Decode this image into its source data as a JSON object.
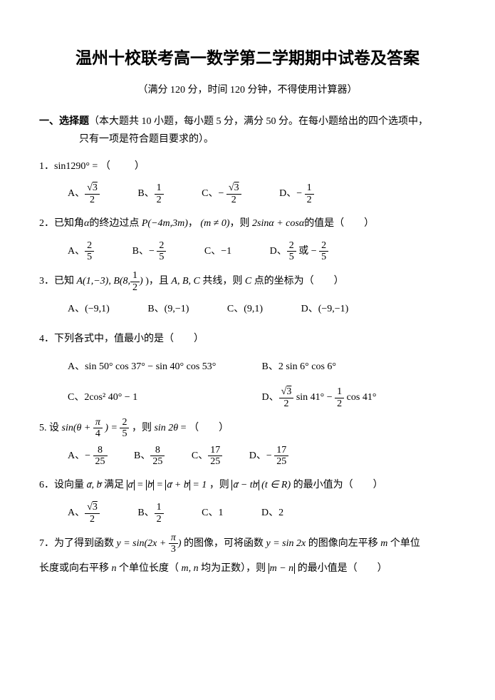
{
  "doc": {
    "title": "温州十校联考高一数学第二学期期中试卷及答案",
    "subtitle": "（满分 120 分，时间 120 分钟，不得使用计算器）",
    "section1_label": "一、选择题",
    "section1_desc": "（本大题共 10 小题，每小题 5 分，满分 50 分。在每小题给出的四个选项中，",
    "section1_desc2": "只有一项是符合题目要求的）。",
    "q1": {
      "stem_a": "1．sin1290° =",
      "stem_b": "（　　）"
    },
    "q2": {
      "stem_a": "2．已知角",
      "alpha": "α",
      "stem_b": "的终边过点",
      "P": "P(−4m,3m)",
      "stem_c": "，",
      "cond": "(m ≠ 0)",
      "stem_d": "，则",
      "expr": "2sinα + cosα",
      "stem_e": "的值是（　　）",
      "oA_pre": "A、",
      "oB_pre": "B、",
      "oC_pre": "C、",
      "oC_val": "−1",
      "oD_pre": "D、",
      "oD_mid": "或"
    },
    "q3": {
      "stem_a": "3．已知",
      "A": "A(1,−3), B(8,",
      "stem_b": ")，且",
      "ABC": "A, B, C",
      "stem_c": "共线，则",
      "C": "C",
      "stem_d": "点的坐标为（　　）",
      "oA": "A、(−9,1)",
      "oB": "B、(9,−1)",
      "oC": "C、(9,1)",
      "oD": "D、(−9,−1)"
    },
    "q4": {
      "stem": "4．下列各式中，值最小的是（　　）",
      "oA": "A、sin 50° cos 37° − sin 40° cos 53°",
      "oB": "B、2 sin 6° cos 6°",
      "oC_pre": "C、",
      "oC_val": "2cos² 40° − 1",
      "oD_pre": "D、",
      "oD_mid": "sin 41° −",
      "oD_end": "cos 41°"
    },
    "q5": {
      "stem_a": "5. 设",
      "expr_l": "sin(θ +",
      "expr_r": ") =",
      "stem_b": "，则",
      "expr2": "sin 2θ",
      "stem_c": " = （　　）",
      "oA": "A、",
      "oB": "B、",
      "oC": "C、",
      "oD": "D、"
    },
    "q6": {
      "stem_a": "6．设向量",
      "ab": "a, b",
      "stem_b": "满足",
      "eq": " = 1",
      "stem_c": "，则",
      "expr": "a − tb",
      "cond": "(t ∈ R)",
      "stem_d": "的最小值为（　　）",
      "oA": "A、",
      "oB": "B、",
      "oC": "C、1",
      "oD": "D、2"
    },
    "q7": {
      "stem_a": "7．为了得到函数",
      "y1": "y = sin(2x +",
      "stem_b": ")",
      "stem_c": "的图像，可将函数",
      "y2": "y = sin 2x",
      "stem_d": "的图像向左平移",
      "m": "m",
      "stem_e": "个单位",
      "line2_a": "长度或向右平移",
      "n": "n",
      "line2_b": "个单位长度（",
      "mn": "m, n",
      "line2_c": "均为正数），则",
      "mn2": "m − n",
      "line2_d": "的最小值是（　　）"
    },
    "frac": {
      "sqrt3": "3",
      "two": "2",
      "one": "1",
      "five": "5",
      "eight": "8",
      "tf": "25",
      "sv": "17",
      "pi": "π",
      "four": "4",
      "three": "3",
      "half": "1"
    }
  }
}
